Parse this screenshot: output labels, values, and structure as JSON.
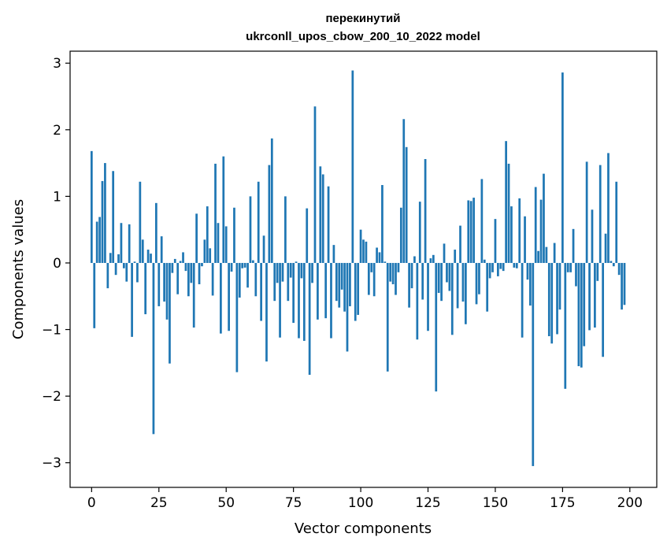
{
  "chart_data": {
    "type": "bar",
    "title": "перекинутий",
    "subtitle": "ukrconll_upos_cbow_200_10_2022 model",
    "xlabel": "Vector components",
    "ylabel": "Components values",
    "xlim": [
      -8,
      210
    ],
    "ylim": [
      -3.37,
      3.18
    ],
    "xticks": [
      0,
      25,
      50,
      75,
      100,
      125,
      150,
      175,
      200
    ],
    "yticks": [
      -3,
      -2,
      -1,
      0,
      1,
      2,
      3
    ],
    "xtick_labels": [
      "0",
      "25",
      "50",
      "75",
      "100",
      "125",
      "150",
      "175",
      "200"
    ],
    "ytick_labels": [
      "−3",
      "−2",
      "−1",
      "0",
      "1",
      "2",
      "3"
    ],
    "bar_color": "#1f77b4",
    "grid": false,
    "values": [
      1.68,
      -0.98,
      0.62,
      0.69,
      1.23,
      1.5,
      -0.38,
      0.15,
      1.38,
      -0.18,
      0.13,
      0.6,
      -0.08,
      -0.28,
      0.58,
      -1.11,
      0.02,
      -0.29,
      1.22,
      0.35,
      -0.77,
      0.2,
      0.14,
      -2.57,
      0.9,
      -0.65,
      0.4,
      -0.58,
      -0.85,
      -1.51,
      -0.15,
      0.06,
      -0.47,
      0.03,
      0.16,
      -0.12,
      -0.5,
      -0.3,
      -0.97,
      0.74,
      -0.32,
      -0.05,
      0.35,
      0.85,
      0.22,
      -0.49,
      1.49,
      0.6,
      -1.06,
      1.6,
      0.55,
      -1.02,
      -0.13,
      0.83,
      -1.64,
      -0.52,
      -0.08,
      -0.07,
      -0.37,
      1.0,
      0.04,
      -0.5,
      1.22,
      -0.87,
      0.41,
      -1.48,
      1.47,
      1.87,
      -0.57,
      -0.3,
      -1.12,
      -0.28,
      1.0,
      -0.57,
      -0.22,
      -0.9,
      0.02,
      -1.13,
      -0.23,
      -1.17,
      0.82,
      -1.68,
      -0.3,
      2.35,
      -0.85,
      1.45,
      1.33,
      -0.83,
      1.15,
      -1.13,
      0.27,
      -0.57,
      -0.67,
      -0.4,
      -0.73,
      -1.33,
      -0.65,
      2.89,
      -0.87,
      -0.78,
      0.5,
      0.35,
      0.32,
      -0.48,
      -0.14,
      -0.5,
      0.23,
      0.16,
      1.17,
      0.02,
      -1.63,
      -0.28,
      -0.32,
      -0.48,
      -0.14,
      0.83,
      2.16,
      1.74,
      -0.67,
      -0.38,
      0.1,
      -1.15,
      0.92,
      -0.55,
      1.56,
      -1.02,
      0.07,
      0.12,
      -1.93,
      -0.45,
      -0.57,
      0.29,
      -0.29,
      -0.42,
      -1.08,
      0.2,
      -0.68,
      0.56,
      -0.58,
      -0.92,
      0.94,
      0.93,
      0.98,
      -0.62,
      -0.47,
      1.26,
      0.05,
      -0.73,
      -0.23,
      -0.14,
      0.66,
      -0.2,
      -0.09,
      -0.12,
      1.83,
      1.49,
      0.85,
      -0.07,
      -0.08,
      0.97,
      -1.12,
      0.7,
      -0.25,
      -0.64,
      -3.05,
      1.14,
      0.18,
      0.95,
      1.34,
      0.24,
      -1.1,
      -1.21,
      0.3,
      -1.07,
      -0.7,
      2.86,
      -1.89,
      -0.14,
      -0.14,
      0.51,
      -0.35,
      -1.55,
      -1.57,
      -1.25,
      1.52,
      -1.01,
      0.8,
      -0.97,
      -0.27,
      1.47,
      -1.41,
      0.44,
      1.65,
      0.03,
      -0.05,
      1.22,
      -0.18,
      -0.7,
      -0.63
    ]
  }
}
